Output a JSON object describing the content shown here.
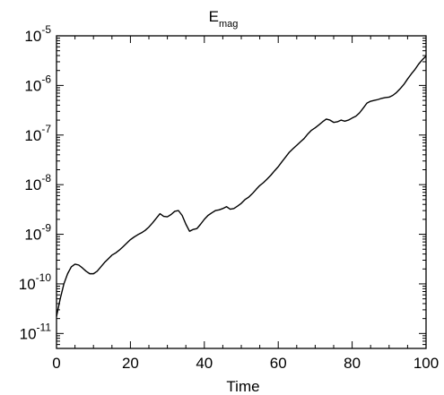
{
  "chart_data": {
    "type": "line",
    "title": "E",
    "title_subscript": "mag",
    "xlabel": "Time",
    "ylabel": "",
    "xlim": [
      0,
      100
    ],
    "ylim": [
      5e-12,
      1e-05
    ],
    "yscale": "log",
    "grid": false,
    "x_ticks": [
      0,
      20,
      40,
      60,
      80,
      100
    ],
    "x_tick_labels": [
      "0",
      "20",
      "40",
      "60",
      "80",
      "100"
    ],
    "y_ticks": [
      {
        "value": 1e-11,
        "base": "10",
        "exp": "-11"
      },
      {
        "value": 1e-10,
        "base": "10",
        "exp": "-10"
      },
      {
        "value": 1e-09,
        "base": "10",
        "exp": "-9"
      },
      {
        "value": 1e-08,
        "base": "10",
        "exp": "-8"
      },
      {
        "value": 1e-07,
        "base": "10",
        "exp": "-7"
      },
      {
        "value": 1e-06,
        "base": "10",
        "exp": "-6"
      },
      {
        "value": 1e-05,
        "base": "10",
        "exp": "-5"
      }
    ],
    "series": [
      {
        "color": "#000000",
        "x": [
          0,
          1,
          2,
          3,
          4,
          5,
          6,
          7,
          8,
          9,
          10,
          11,
          12,
          13,
          14,
          15,
          16,
          17,
          18,
          19,
          20,
          21,
          22,
          23,
          24,
          25,
          26,
          27,
          28,
          29,
          30,
          31,
          32,
          33,
          34,
          35,
          36,
          37,
          38,
          39,
          40,
          41,
          42,
          43,
          44,
          45,
          46,
          47,
          48,
          49,
          50,
          51,
          52,
          53,
          54,
          55,
          56,
          57,
          58,
          59,
          60,
          61,
          62,
          63,
          64,
          65,
          66,
          67,
          68,
          69,
          70,
          71,
          72,
          73,
          74,
          75,
          76,
          77,
          78,
          79,
          80,
          81,
          82,
          83,
          84,
          85,
          86,
          87,
          88,
          89,
          90,
          91,
          92,
          93,
          94,
          95,
          96,
          97,
          98,
          99,
          100
        ],
        "y": [
          2.2e-11,
          5e-11,
          1e-10,
          1.6e-10,
          2.2e-10,
          2.5e-10,
          2.4e-10,
          2.1e-10,
          1.8e-10,
          1.6e-10,
          1.6e-10,
          1.8e-10,
          2.2e-10,
          2.7e-10,
          3.2e-10,
          3.8e-10,
          4.2e-10,
          4.8e-10,
          5.6e-10,
          6.6e-10,
          7.8e-10,
          8.8e-10,
          9.8e-10,
          1.07e-09,
          1.2e-09,
          1.4e-09,
          1.7e-09,
          2.1e-09,
          2.6e-09,
          2.3e-09,
          2.25e-09,
          2.5e-09,
          2.9e-09,
          3e-09,
          2.4e-09,
          1.6e-09,
          1.15e-09,
          1.25e-09,
          1.3e-09,
          1.6e-09,
          2e-09,
          2.4e-09,
          2.7e-09,
          3e-09,
          3.1e-09,
          3.3e-09,
          3.6e-09,
          3.2e-09,
          3.3e-09,
          3.7e-09,
          4.2e-09,
          5e-09,
          5.6e-09,
          6.6e-09,
          8e-09,
          9.6e-09,
          1.1e-08,
          1.3e-08,
          1.55e-08,
          1.9e-08,
          2.3e-08,
          2.9e-08,
          3.6e-08,
          4.5e-08,
          5.3e-08,
          6.2e-08,
          7.3e-08,
          8.5e-08,
          1.05e-07,
          1.25e-07,
          1.4e-07,
          1.6e-07,
          1.85e-07,
          2.1e-07,
          2e-07,
          1.8e-07,
          1.85e-07,
          2e-07,
          1.9e-07,
          2e-07,
          2.2e-07,
          2.4e-07,
          2.8e-07,
          3.5e-07,
          4.4e-07,
          4.8e-07,
          5e-07,
          5.2e-07,
          5.5e-07,
          5.7e-07,
          5.8e-07,
          6.3e-07,
          7.2e-07,
          8.6e-07,
          1.05e-06,
          1.35e-06,
          1.7e-06,
          2.1e-06,
          2.7e-06,
          3.3e-06,
          3.9e-06
        ]
      }
    ]
  }
}
